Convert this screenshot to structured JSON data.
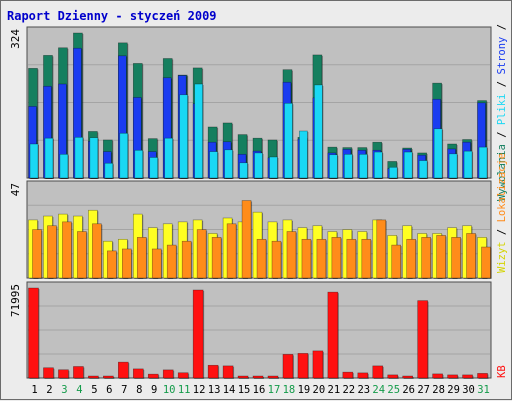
{
  "title": "Raport Dzienny -  styczeń 2009",
  "colors": {
    "title": "#0000cc",
    "panel_bg": "#c0c0c0",
    "grid": "#a4a4a4",
    "visits": "#157f5f",
    "pages": "#1a3cf0",
    "files": "#1ad8f4",
    "hits_top": "#ffff22",
    "hosts": "#ff8c1a",
    "kb": "#ff1010",
    "weekend_label": "#149b4a",
    "weekday_label": "#000000"
  },
  "right_labels": {
    "top": [
      {
        "text": "Wywołania",
        "color": "#157f5f"
      },
      {
        "text": " / ",
        "color": "#000000"
      },
      {
        "text": "Pliki",
        "color": "#1ad8f4"
      },
      {
        "text": " / ",
        "color": "#000000"
      },
      {
        "text": "Strony",
        "color": "#1a3cf0"
      },
      {
        "text": " / ",
        "color": "#000000"
      }
    ],
    "mid": [
      {
        "text": "Wizyt",
        "color": "#d4d400"
      },
      {
        "text": " / ",
        "color": "#000000"
      },
      {
        "text": "Lokalizacje",
        "color": "#ff8c1a"
      }
    ],
    "bottom": [
      {
        "text": "KB",
        "color": "#ff1010"
      }
    ]
  },
  "chart_data": [
    {
      "type": "bar",
      "panel": "top",
      "ymax_label": "324",
      "ylim": [
        0,
        324
      ],
      "x": [
        1,
        2,
        3,
        4,
        5,
        6,
        7,
        8,
        9,
        10,
        11,
        12,
        13,
        14,
        15,
        16,
        17,
        18,
        19,
        20,
        21,
        22,
        23,
        24,
        25,
        26,
        27,
        28,
        29,
        30,
        31
      ],
      "series": [
        {
          "name": "Wywołania",
          "values": [
            245,
            274,
            291,
            324,
            104,
            85,
            302,
            256,
            88,
            267,
            230,
            246,
            114,
            123,
            97,
            89,
            85,
            242,
            91,
            275,
            69,
            68,
            68,
            80,
            37,
            67,
            56,
            212,
            76,
            86,
            173
          ]
        },
        {
          "name": "Strony",
          "values": [
            160,
            205,
            210,
            290,
            82,
            59,
            273,
            180,
            59,
            224,
            229,
            166,
            80,
            81,
            53,
            60,
            45,
            214,
            87,
            179,
            56,
            64,
            62,
            62,
            21,
            64,
            51,
            176,
            65,
            80,
            168
          ]
        },
        {
          "name": "Pliki",
          "values": [
            76,
            89,
            53,
            91,
            90,
            33,
            100,
            62,
            46,
            89,
            186,
            210,
            59,
            63,
            34,
            56,
            47,
            167,
            105,
            208,
            52,
            53,
            53,
            58,
            24,
            58,
            39,
            110,
            54,
            60,
            69
          ]
        }
      ]
    },
    {
      "type": "bar",
      "panel": "middle",
      "ymax_label": "47",
      "ylim": [
        0,
        47
      ],
      "x": [
        1,
        2,
        3,
        4,
        5,
        6,
        7,
        8,
        9,
        10,
        11,
        12,
        13,
        14,
        15,
        16,
        17,
        18,
        19,
        20,
        21,
        22,
        23,
        24,
        25,
        26,
        27,
        28,
        29,
        30,
        31
      ],
      "series": [
        {
          "name": "Wizyt",
          "values": [
            30,
            32,
            33,
            32,
            35,
            19,
            20,
            33,
            26,
            28,
            29,
            30,
            23,
            31,
            29,
            34,
            29,
            30,
            26,
            27,
            24,
            25,
            24,
            30,
            22,
            27,
            23,
            23,
            26,
            27,
            21
          ]
        },
        {
          "name": "Lokalizacje",
          "values": [
            25,
            27,
            29,
            24,
            28,
            14,
            15,
            21,
            15,
            17,
            19,
            25,
            21,
            28,
            40,
            20,
            19,
            24,
            20,
            20,
            21,
            20,
            20,
            30,
            17,
            20,
            21,
            22,
            21,
            23,
            16
          ]
        }
      ]
    },
    {
      "type": "bar",
      "panel": "bottom",
      "ymax_label": "71995",
      "ylim": [
        0,
        71995
      ],
      "x": [
        1,
        2,
        3,
        4,
        5,
        6,
        7,
        8,
        9,
        10,
        11,
        12,
        13,
        14,
        15,
        16,
        17,
        18,
        19,
        20,
        21,
        22,
        23,
        24,
        25,
        26,
        27,
        28,
        29,
        30,
        31
      ],
      "series": [
        {
          "name": "KB",
          "values": [
            71995,
            8200,
            6600,
            9200,
            1600,
            1600,
            12700,
            7300,
            3100,
            6500,
            4200,
            70400,
            10200,
            9700,
            1600,
            1600,
            1600,
            18900,
            19700,
            21700,
            68700,
            4700,
            4100,
            9700,
            2500,
            1600,
            61900,
            3300,
            2500,
            2500,
            3700
          ]
        }
      ]
    }
  ],
  "x_labels": [
    "1",
    "2",
    "3",
    "4",
    "5",
    "6",
    "7",
    "8",
    "9",
    "10",
    "11",
    "12",
    "13",
    "14",
    "15",
    "16",
    "17",
    "18",
    "19",
    "20",
    "21",
    "22",
    "23",
    "24",
    "25",
    "26",
    "27",
    "28",
    "29",
    "30",
    "31"
  ],
  "weekend_days": [
    3,
    4,
    10,
    11,
    17,
    18,
    24,
    25,
    31
  ]
}
